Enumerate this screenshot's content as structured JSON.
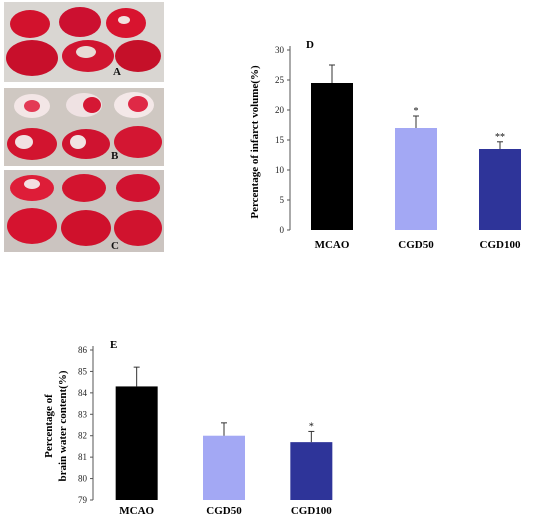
{
  "photos": [
    {
      "label": "A"
    },
    {
      "label": "B"
    },
    {
      "label": "C"
    }
  ],
  "chart_data": [
    {
      "type": "bar",
      "panel_label": "D",
      "categories": [
        "MCAO",
        "CGD50",
        "CGD100"
      ],
      "values": [
        24.5,
        17.0,
        13.5
      ],
      "errors": [
        3.0,
        2.0,
        1.2
      ],
      "significance": [
        "",
        "*",
        "**"
      ],
      "colors": [
        "#000000",
        "#a3a8f4",
        "#2e3499"
      ],
      "ylabel": "Percentage of infarct volume(%)",
      "ylim": [
        0,
        30
      ],
      "yticks": [
        0,
        5,
        10,
        15,
        20,
        25,
        30
      ],
      "grid": false
    },
    {
      "type": "bar",
      "panel_label": "E",
      "categories": [
        "MCAO",
        "CGD50",
        "CGD100"
      ],
      "values": [
        84.3,
        82.0,
        81.7
      ],
      "errors": [
        0.9,
        0.6,
        0.5
      ],
      "significance": [
        "",
        "",
        "*"
      ],
      "colors": [
        "#000000",
        "#a3a8f4",
        "#2e3499"
      ],
      "ylabel_lines": [
        "Percentage of",
        "brain water content(%)"
      ],
      "ylim": [
        79,
        86
      ],
      "yticks": [
        79,
        80,
        81,
        82,
        83,
        84,
        85,
        86
      ],
      "grid": false
    }
  ]
}
